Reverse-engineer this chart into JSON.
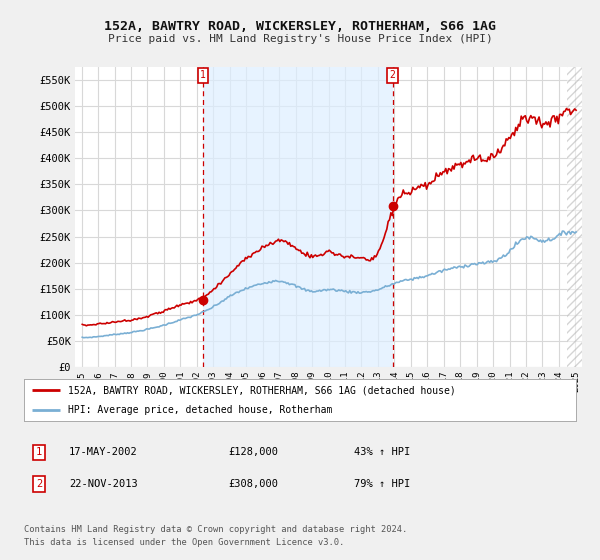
{
  "title": "152A, BAWTRY ROAD, WICKERSLEY, ROTHERHAM, S66 1AG",
  "subtitle": "Price paid vs. HM Land Registry's House Price Index (HPI)",
  "ylim": [
    0,
    575000
  ],
  "yticks": [
    0,
    50000,
    100000,
    150000,
    200000,
    250000,
    300000,
    350000,
    400000,
    450000,
    500000,
    550000
  ],
  "ytick_labels": [
    "£0",
    "£50K",
    "£100K",
    "£150K",
    "£200K",
    "£250K",
    "£300K",
    "£350K",
    "£400K",
    "£450K",
    "£500K",
    "£550K"
  ],
  "fig_bg_color": "#f0f0f0",
  "plot_bg_color": "#ffffff",
  "grid_color": "#d8d8d8",
  "red_line_color": "#cc0000",
  "blue_line_color": "#7aafd4",
  "shade_color": "#ddeeff",
  "sale1_x": 2002.38,
  "sale1_price": 128000,
  "sale2_x": 2013.9,
  "sale2_price": 308000,
  "legend_line1": "152A, BAWTRY ROAD, WICKERSLEY, ROTHERHAM, S66 1AG (detached house)",
  "legend_line2": "HPI: Average price, detached house, Rotherham",
  "sale1_date": "17-MAY-2002",
  "sale1_amount": "£128,000",
  "sale1_pct": "43% ↑ HPI",
  "sale2_date": "22-NOV-2013",
  "sale2_amount": "£308,000",
  "sale2_pct": "79% ↑ HPI",
  "footer1": "Contains HM Land Registry data © Crown copyright and database right 2024.",
  "footer2": "This data is licensed under the Open Government Licence v3.0."
}
